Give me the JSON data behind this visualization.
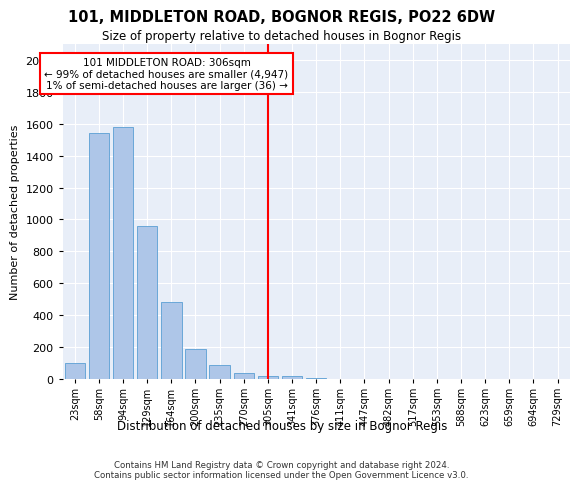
{
  "title": "101, MIDDLETON ROAD, BOGNOR REGIS, PO22 6DW",
  "subtitle": "Size of property relative to detached houses in Bognor Regis",
  "xlabel": "Distribution of detached houses by size in Bognor Regis",
  "ylabel": "Number of detached properties",
  "categories": [
    "23sqm",
    "58sqm",
    "94sqm",
    "129sqm",
    "164sqm",
    "200sqm",
    "235sqm",
    "270sqm",
    "305sqm",
    "341sqm",
    "376sqm",
    "411sqm",
    "447sqm",
    "482sqm",
    "517sqm",
    "553sqm",
    "588sqm",
    "623sqm",
    "659sqm",
    "694sqm",
    "729sqm"
  ],
  "values": [
    100,
    1540,
    1580,
    960,
    480,
    190,
    90,
    35,
    20,
    20,
    5,
    0,
    0,
    0,
    0,
    0,
    0,
    0,
    0,
    0,
    0
  ],
  "bar_color": "#aec6e8",
  "bar_edge_color": "#5a9fd4",
  "background_color": "#e8eef8",
  "grid_color": "#ffffff",
  "red_line_index": 8,
  "annotation_text": "101 MIDDLETON ROAD: 306sqm\n← 99% of detached houses are smaller (4,947)\n1% of semi-detached houses are larger (36) →",
  "footer_line1": "Contains HM Land Registry data © Crown copyright and database right 2024.",
  "footer_line2": "Contains public sector information licensed under the Open Government Licence v3.0.",
  "ylim": [
    0,
    2100
  ],
  "yticks": [
    0,
    200,
    400,
    600,
    800,
    1000,
    1200,
    1400,
    1600,
    1800,
    2000
  ]
}
